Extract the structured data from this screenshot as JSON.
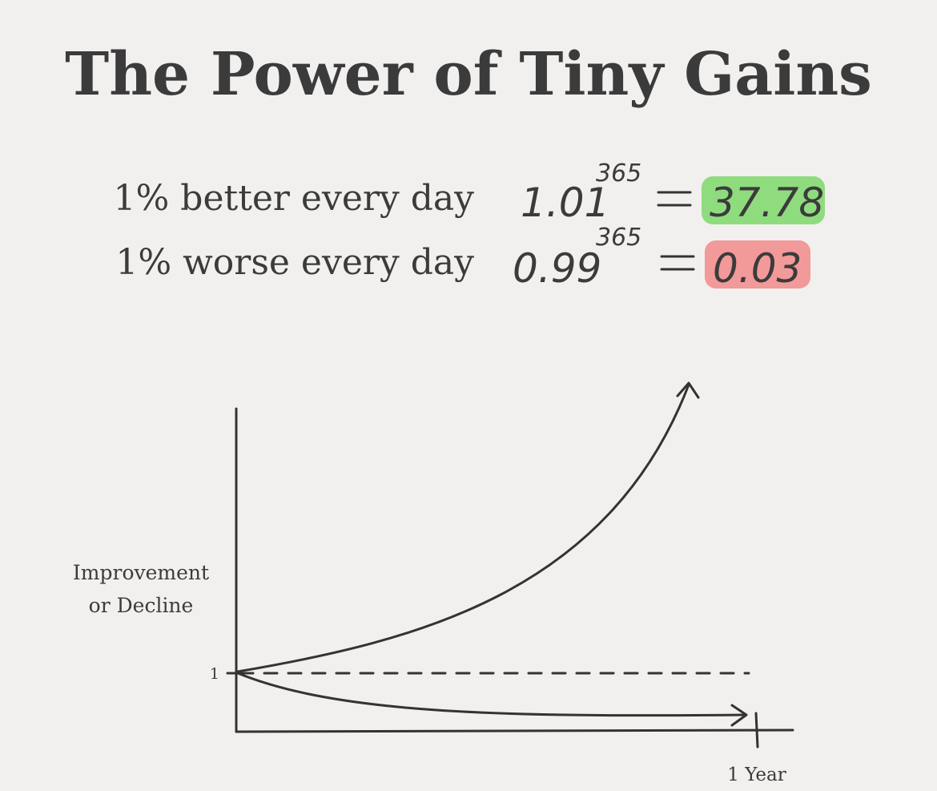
{
  "title": "The Power of Tiny Gains",
  "rows": [
    {
      "label": "1% better every day",
      "base": "1.01",
      "exponent": "365",
      "result": "37.78"
    },
    {
      "label": "1% worse every day",
      "base": "0.99",
      "exponent": "365",
      "result": "0.03"
    }
  ],
  "graph": {
    "y_label": [
      "Improvement",
      "or Decline"
    ],
    "y_tick": "1",
    "x_tick": "1 Year"
  }
}
